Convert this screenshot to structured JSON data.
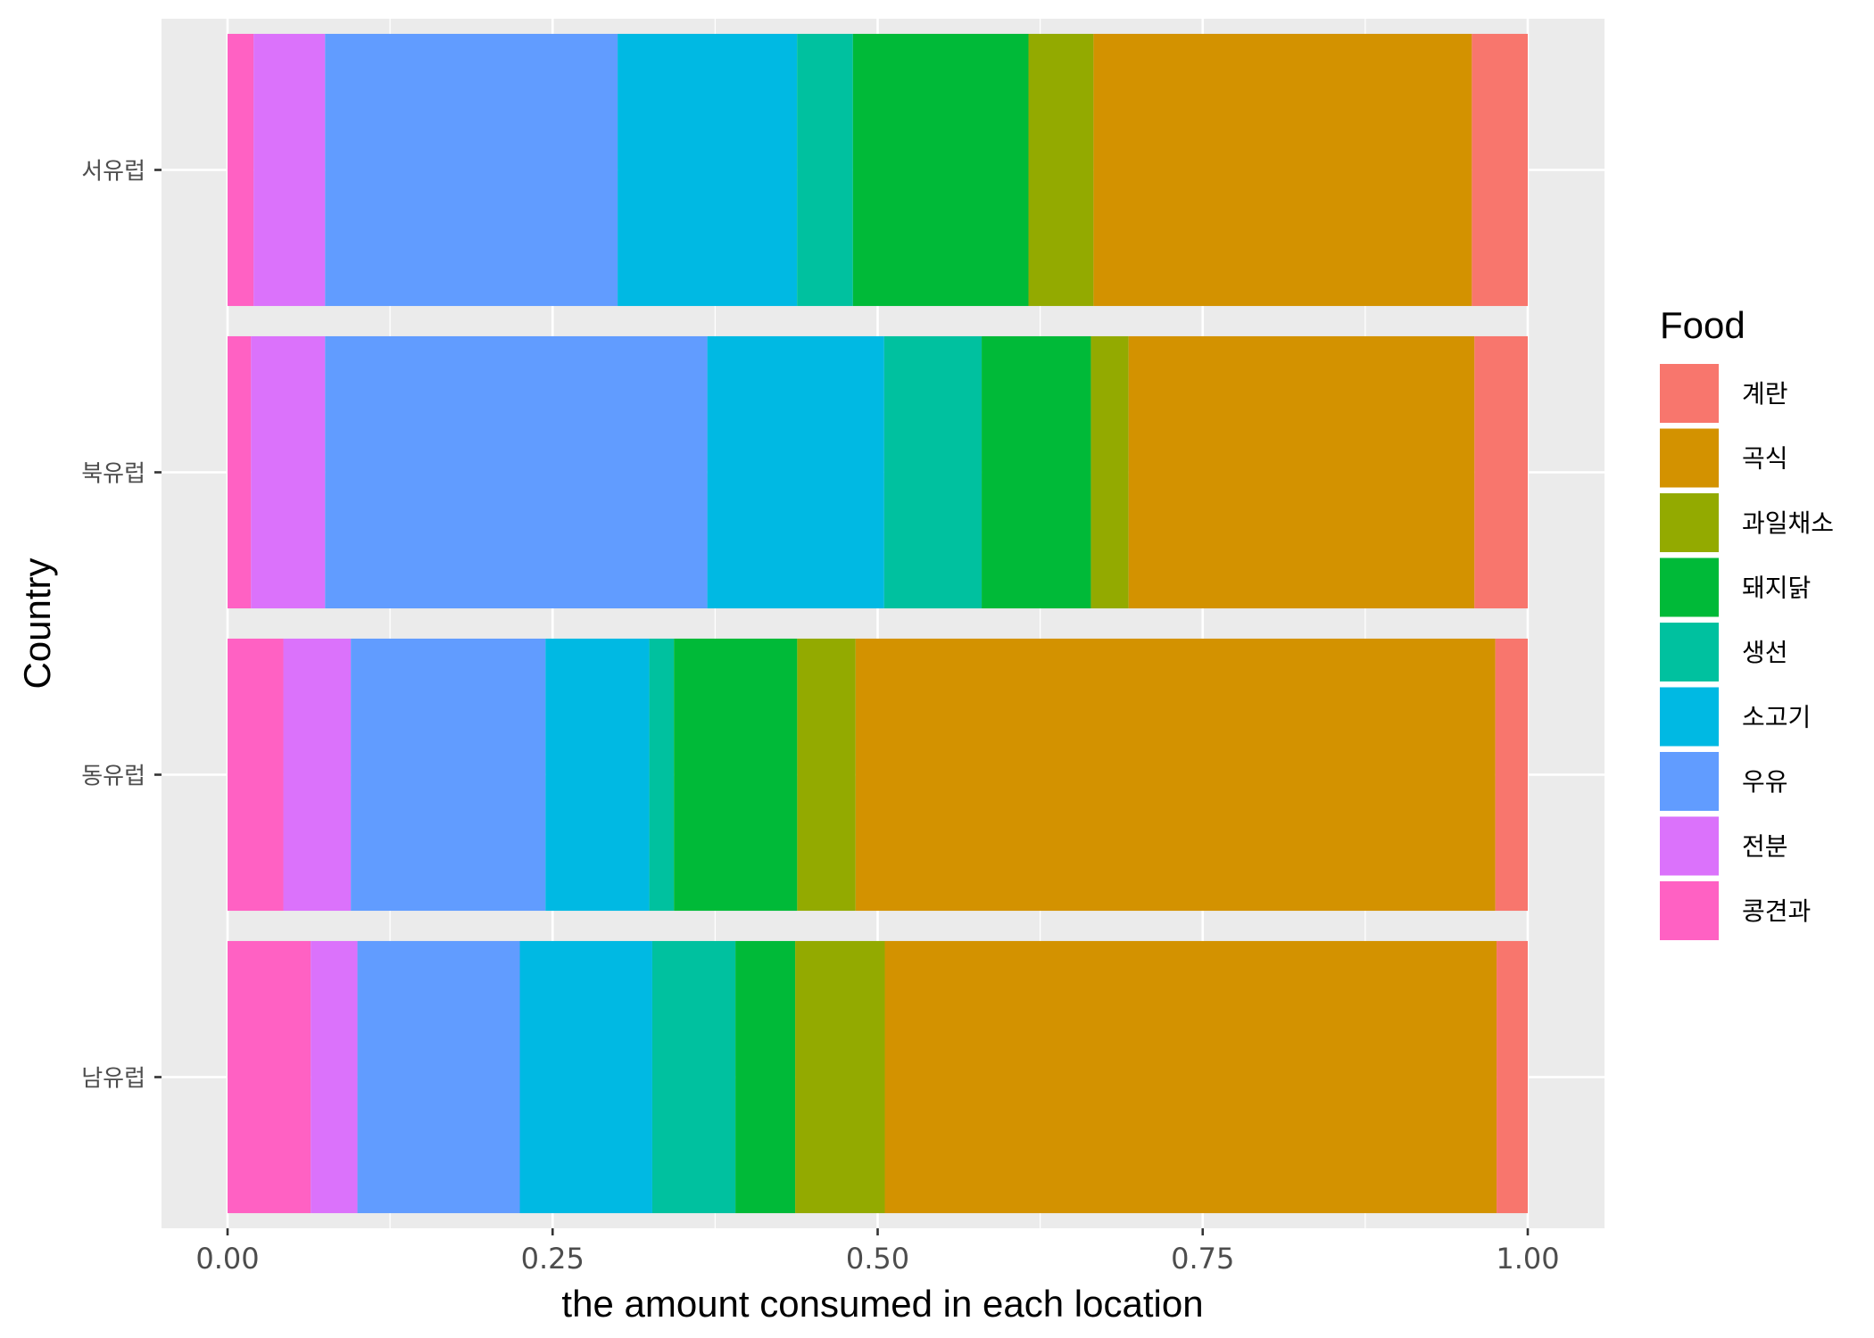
{
  "chart_data": {
    "type": "bar",
    "orientation": "horizontal",
    "stacked": true,
    "title": "",
    "xlabel": "the amount consumed in each location",
    "ylabel": "Country",
    "xlim": [
      0,
      1
    ],
    "x_ticks": [
      "0.00",
      "0.25",
      "0.50",
      "0.75",
      "1.00"
    ],
    "grid": true,
    "legend_position": "right",
    "legend_title": "Food",
    "categories": [
      "서유럽",
      "북유럽",
      "동유럽",
      "남유럽"
    ],
    "series": [
      {
        "name": "콩견과",
        "color": "#FF61C3",
        "values": [
          0.02,
          0.018,
          0.043,
          0.064
        ]
      },
      {
        "name": "전분",
        "color": "#DB72FB",
        "values": [
          0.055,
          0.057,
          0.052,
          0.036
        ]
      },
      {
        "name": "우유",
        "color": "#619CFF",
        "values": [
          0.225,
          0.294,
          0.15,
          0.125
        ]
      },
      {
        "name": "소고기",
        "color": "#00B9E3",
        "values": [
          0.138,
          0.136,
          0.08,
          0.102
        ]
      },
      {
        "name": "생선",
        "color": "#00C19F",
        "values": [
          0.043,
          0.075,
          0.019,
          0.064
        ]
      },
      {
        "name": "돼지닭",
        "color": "#00BA38",
        "values": [
          0.135,
          0.084,
          0.095,
          0.046
        ]
      },
      {
        "name": "과일채소",
        "color": "#93AA00",
        "values": [
          0.05,
          0.029,
          0.045,
          0.069
        ]
      },
      {
        "name": "곡식",
        "color": "#D39200",
        "values": [
          0.291,
          0.266,
          0.493,
          0.471
        ]
      },
      {
        "name": "계란",
        "color": "#F8766D",
        "values": [
          0.043,
          0.041,
          0.025,
          0.024
        ]
      }
    ],
    "legend_order": [
      "계란",
      "곡식",
      "과일채소",
      "돼지닭",
      "생선",
      "소고기",
      "우유",
      "전분",
      "콩견과"
    ]
  }
}
